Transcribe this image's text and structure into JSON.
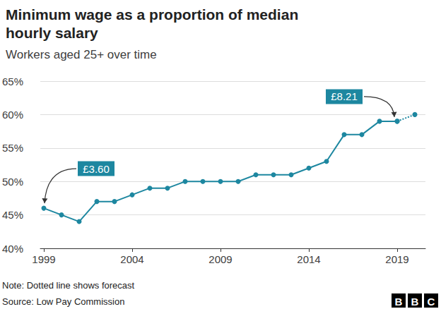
{
  "chart_data": {
    "type": "line",
    "title": "Minimum wage as a proportion of median hourly salary",
    "subtitle": "Workers aged 25+ over time",
    "x": [
      1999,
      2000,
      2001,
      2002,
      2003,
      2004,
      2005,
      2006,
      2007,
      2008,
      2009,
      2010,
      2011,
      2012,
      2013,
      2014,
      2015,
      2016,
      2017,
      2018,
      2019,
      2020
    ],
    "series": [
      {
        "color": "#1d87a0",
        "line_style": "solid",
        "marker": "circle",
        "values": [
          46,
          45,
          44,
          47,
          47,
          48,
          49,
          49,
          50,
          50,
          50,
          50,
          51,
          51,
          51,
          52,
          53,
          57,
          57,
          59,
          59,
          null
        ]
      },
      {
        "color": "#1d87a0",
        "line_style": "dotted",
        "marker": "circle",
        "values": [
          null,
          null,
          null,
          null,
          null,
          null,
          null,
          null,
          null,
          null,
          null,
          null,
          null,
          null,
          null,
          null,
          null,
          null,
          null,
          null,
          59,
          60
        ]
      }
    ],
    "xlim": [
      1998.8,
      2020.6
    ],
    "xticks": [
      1999,
      2004,
      2009,
      2014,
      2019
    ],
    "ylim": [
      40,
      65
    ],
    "yticks": [
      {
        "value": 40,
        "label": "40%"
      },
      {
        "value": 45,
        "label": "45%"
      },
      {
        "value": 50,
        "label": "50%"
      },
      {
        "value": 55,
        "label": "55%"
      },
      {
        "value": 60,
        "label": "60%"
      },
      {
        "value": 65,
        "label": "65%"
      }
    ],
    "grid": true,
    "annotations": [
      {
        "text": "£3.60",
        "x": 1999,
        "y": 46
      },
      {
        "text": "£8.21",
        "x": 2019,
        "y": 59
      }
    ],
    "note": "Note: Dotted line shows forecast",
    "source": "Source: Low Pay Commission",
    "logo": "BBC"
  }
}
